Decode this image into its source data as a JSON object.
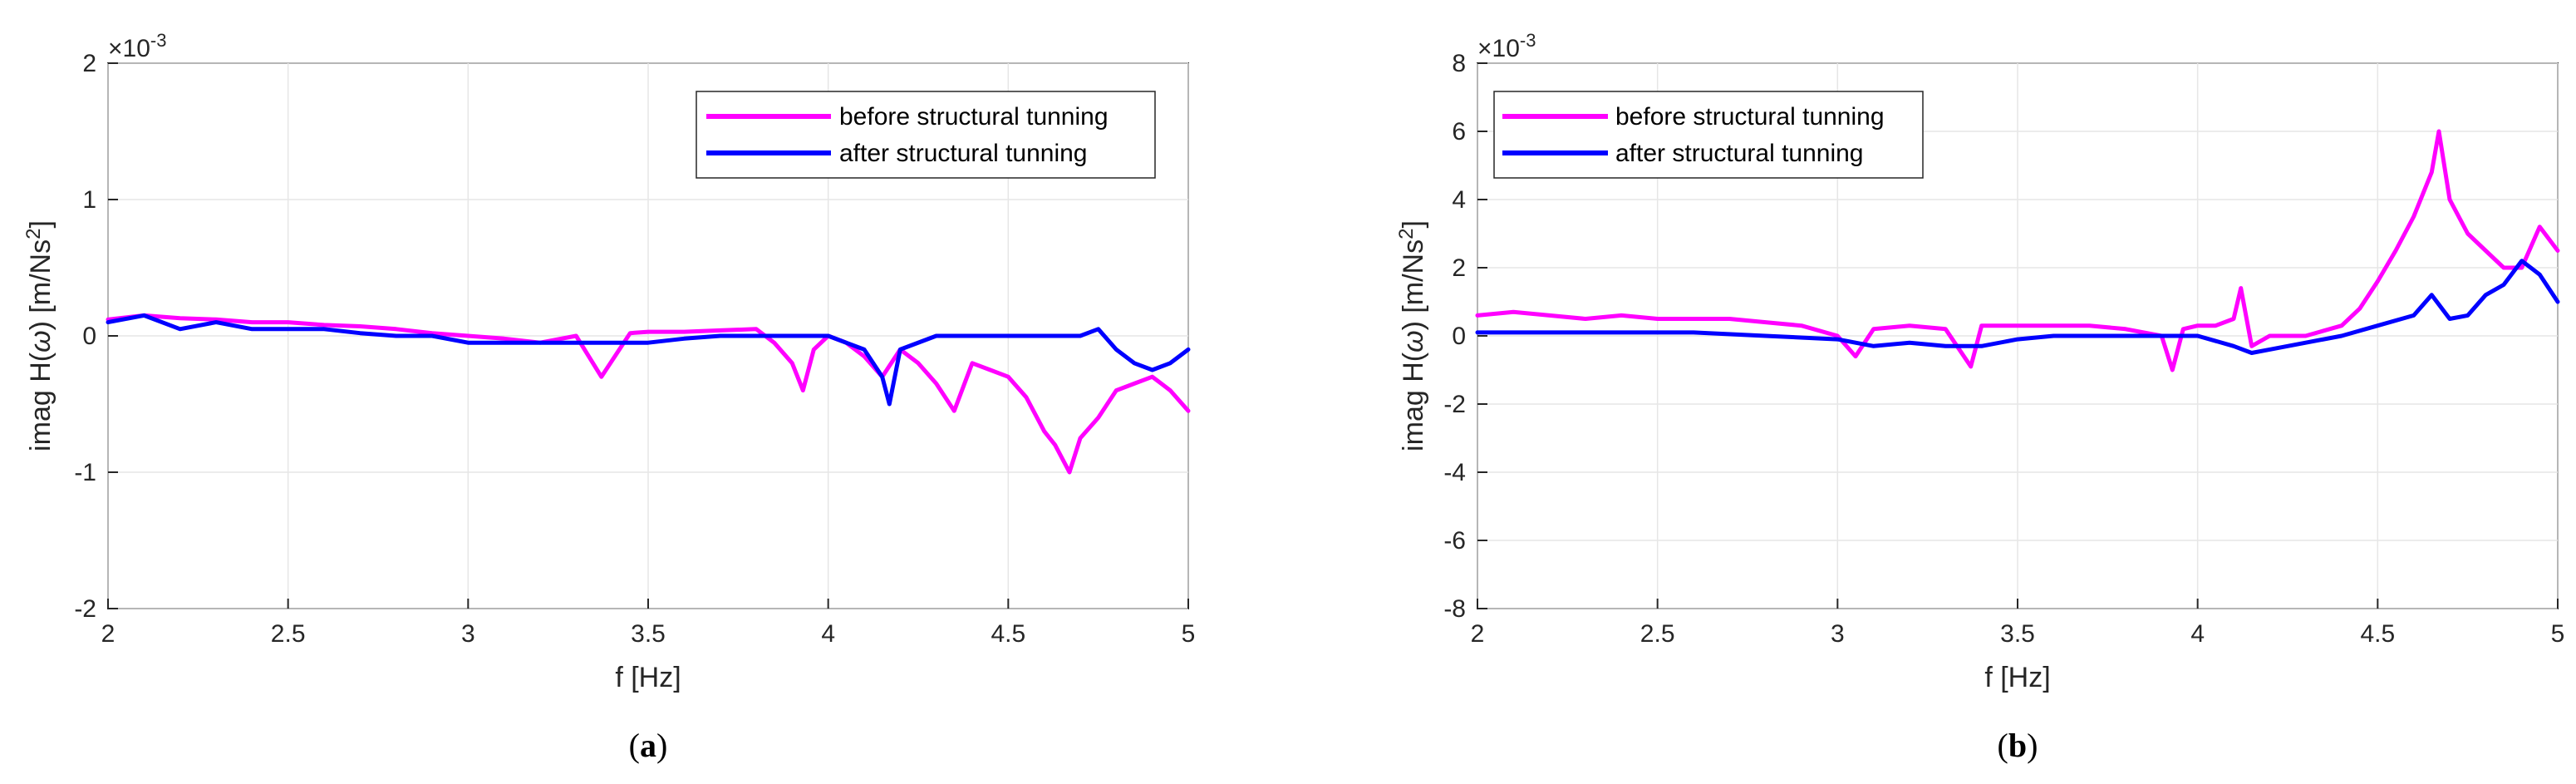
{
  "figure": {
    "subplots": [
      "a",
      "b"
    ]
  },
  "chart_data": [
    {
      "id": "a",
      "type": "line",
      "caption": "(a)",
      "caption_letter": "a",
      "xlabel": "f [Hz]",
      "ylabel": "imag H(ω) [m/Ns²]",
      "ylabel_main": "imag H(",
      "ylabel_omega": "ω",
      "ylabel_units": ") [m/Ns",
      "ylabel_sup": "2",
      "ylabel_close": "]",
      "exponent_base": "×10",
      "exponent_power": "-3",
      "xlim": [
        2,
        5
      ],
      "ylim": [
        -2,
        2
      ],
      "xticks": [
        2,
        2.5,
        3,
        3.5,
        4,
        4.5,
        5
      ],
      "xtick_labels": [
        "2",
        "2.5",
        "3",
        "3.5",
        "4",
        "4.5",
        "5"
      ],
      "yticks": [
        -2,
        -1,
        0,
        1,
        2
      ],
      "ytick_labels": [
        "-2",
        "-1",
        "0",
        "1",
        "2"
      ],
      "grid": true,
      "legend": "top-right",
      "series": [
        {
          "name": "before structural tunning",
          "color": "#ff00ff",
          "x": [
            2.0,
            2.1,
            2.2,
            2.3,
            2.4,
            2.5,
            2.6,
            2.7,
            2.8,
            2.9,
            3.0,
            3.1,
            3.2,
            3.3,
            3.37,
            3.45,
            3.5,
            3.6,
            3.7,
            3.8,
            3.85,
            3.9,
            3.93,
            3.96,
            4.0,
            4.05,
            4.1,
            4.15,
            4.2,
            4.25,
            4.3,
            4.35,
            4.4,
            4.45,
            4.5,
            4.55,
            4.6,
            4.63,
            4.67,
            4.7,
            4.75,
            4.8,
            4.85,
            4.9,
            4.95,
            5.0
          ],
          "y": [
            0.12,
            0.15,
            0.13,
            0.12,
            0.1,
            0.1,
            0.08,
            0.07,
            0.05,
            0.02,
            0.0,
            -0.02,
            -0.05,
            0.0,
            -0.3,
            0.02,
            0.03,
            0.03,
            0.04,
            0.05,
            -0.05,
            -0.2,
            -0.4,
            -0.1,
            0.0,
            -0.05,
            -0.15,
            -0.3,
            -0.1,
            -0.2,
            -0.35,
            -0.55,
            -0.2,
            -0.25,
            -0.3,
            -0.45,
            -0.7,
            -0.8,
            -1.0,
            -0.75,
            -0.6,
            -0.4,
            -0.35,
            -0.3,
            -0.4,
            -0.55
          ]
        },
        {
          "name": "after structural tunning",
          "color": "#0000ff",
          "x": [
            2.0,
            2.1,
            2.2,
            2.3,
            2.4,
            2.5,
            2.6,
            2.7,
            2.8,
            2.9,
            3.0,
            3.1,
            3.2,
            3.3,
            3.4,
            3.5,
            3.6,
            3.7,
            3.8,
            3.9,
            4.0,
            4.05,
            4.1,
            4.15,
            4.17,
            4.2,
            4.3,
            4.4,
            4.5,
            4.6,
            4.7,
            4.75,
            4.8,
            4.85,
            4.9,
            4.95,
            5.0
          ],
          "y": [
            0.1,
            0.15,
            0.05,
            0.1,
            0.05,
            0.05,
            0.05,
            0.02,
            0.0,
            0.0,
            -0.05,
            -0.05,
            -0.05,
            -0.05,
            -0.05,
            -0.05,
            -0.02,
            0.0,
            0.0,
            0.0,
            0.0,
            -0.05,
            -0.1,
            -0.3,
            -0.5,
            -0.1,
            0.0,
            0.0,
            0.0,
            0.0,
            0.0,
            0.05,
            -0.1,
            -0.2,
            -0.25,
            -0.2,
            -0.1
          ]
        }
      ]
    },
    {
      "id": "b",
      "type": "line",
      "caption": "(b)",
      "caption_letter": "b",
      "xlabel": "f [Hz]",
      "ylabel": "imag H(ω) [m/Ns²]",
      "ylabel_main": "imag H(",
      "ylabel_omega": "ω",
      "ylabel_units": ") [m/Ns",
      "ylabel_sup": "2",
      "ylabel_close": "]",
      "exponent_base": "×10",
      "exponent_power": "-3",
      "xlim": [
        2,
        5
      ],
      "ylim": [
        -8,
        8
      ],
      "xticks": [
        2,
        2.5,
        3,
        3.5,
        4,
        4.5,
        5
      ],
      "xtick_labels": [
        "2",
        "2.5",
        "3",
        "3.5",
        "4",
        "4.5",
        "5"
      ],
      "yticks": [
        -8,
        -6,
        -4,
        -2,
        0,
        2,
        4,
        6,
        8
      ],
      "ytick_labels": [
        "-8",
        "-6",
        "-4",
        "-2",
        "0",
        "2",
        "4",
        "6",
        "8"
      ],
      "grid": true,
      "legend": "top-left",
      "series": [
        {
          "name": "before structural tunning",
          "color": "#ff00ff",
          "x": [
            2.0,
            2.1,
            2.2,
            2.3,
            2.4,
            2.5,
            2.6,
            2.7,
            2.8,
            2.9,
            3.0,
            3.05,
            3.1,
            3.2,
            3.3,
            3.37,
            3.4,
            3.5,
            3.6,
            3.7,
            3.8,
            3.9,
            3.93,
            3.96,
            4.0,
            4.05,
            4.1,
            4.12,
            4.15,
            4.2,
            4.3,
            4.4,
            4.45,
            4.5,
            4.55,
            4.6,
            4.65,
            4.67,
            4.7,
            4.75,
            4.8,
            4.85,
            4.9,
            4.95,
            5.0
          ],
          "y": [
            0.6,
            0.7,
            0.6,
            0.5,
            0.6,
            0.5,
            0.5,
            0.5,
            0.4,
            0.3,
            0.0,
            -0.6,
            0.2,
            0.3,
            0.2,
            -0.9,
            0.3,
            0.3,
            0.3,
            0.3,
            0.2,
            0.0,
            -1.0,
            0.2,
            0.3,
            0.3,
            0.5,
            1.4,
            -0.3,
            0.0,
            0.0,
            0.3,
            0.8,
            1.6,
            2.5,
            3.5,
            4.8,
            6.0,
            4.0,
            3.0,
            2.5,
            2.0,
            2.0,
            3.2,
            2.5
          ]
        },
        {
          "name": "after structural tunning",
          "color": "#0000ff",
          "x": [
            2.0,
            2.2,
            2.4,
            2.6,
            2.8,
            3.0,
            3.1,
            3.2,
            3.3,
            3.4,
            3.5,
            3.6,
            3.7,
            3.8,
            3.9,
            4.0,
            4.1,
            4.15,
            4.2,
            4.3,
            4.4,
            4.5,
            4.6,
            4.65,
            4.7,
            4.75,
            4.8,
            4.85,
            4.9,
            4.95,
            5.0
          ],
          "y": [
            0.1,
            0.1,
            0.1,
            0.1,
            0.0,
            -0.1,
            -0.3,
            -0.2,
            -0.3,
            -0.3,
            -0.1,
            0.0,
            0.0,
            0.0,
            0.0,
            0.0,
            -0.3,
            -0.5,
            -0.4,
            -0.2,
            0.0,
            0.3,
            0.6,
            1.2,
            0.5,
            0.6,
            1.2,
            1.5,
            2.2,
            1.8,
            1.0
          ]
        }
      ]
    }
  ]
}
